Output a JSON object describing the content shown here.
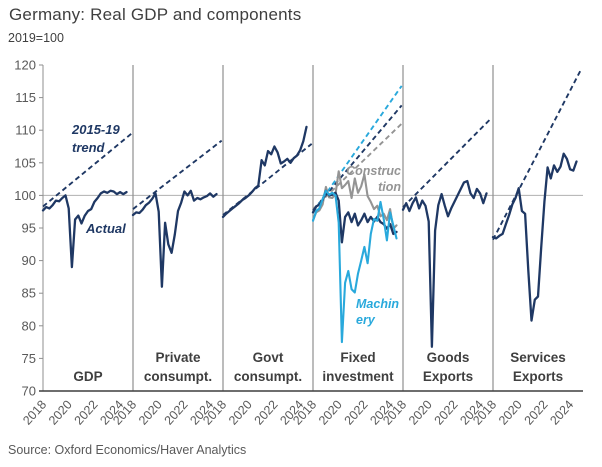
{
  "chart_data": {
    "type": "line",
    "title": "Germany: Real GDP and components",
    "subtitle": "2019=100",
    "source": "Source: Oxford Economics/Haver Analytics",
    "ylim": [
      70,
      120
    ],
    "y_ticks": [
      70,
      75,
      80,
      85,
      90,
      95,
      100,
      105,
      110,
      115,
      120
    ],
    "x_ticks": [
      2018,
      2020,
      2022,
      2024
    ],
    "x_start": 2018,
    "x_step": 0.25,
    "trend_x_end": 2024.9,
    "grid": "single horizontal reference line at 100",
    "legend_position": "inline annotations",
    "colors": {
      "navy": "#1f3864",
      "machinery": "#29a9dc",
      "construction": "#949494",
      "gridline": "#b0b0b0",
      "separator": "#8f8f8f",
      "axis_line": "#8f8f8f",
      "bottom_axis": "#3f3f3f",
      "axis_text": "#595959",
      "caption": "#3f3f3f"
    },
    "annotations": {
      "trend": {
        "lines": [
          "2015-19",
          "trend"
        ]
      },
      "actual": {
        "lines": [
          "Actual"
        ]
      },
      "construction": {
        "lines": [
          "Construc",
          "tion"
        ]
      },
      "machinery": {
        "lines": [
          "Machin",
          "ery"
        ]
      }
    },
    "panels": [
      {
        "caption_lines": [
          "GDP"
        ],
        "series": [
          {
            "name": "Actual",
            "color": "navy",
            "trend_start": 98.3,
            "trend_end": 109.5,
            "values": [
              97.7,
              98.2,
              98.0,
              98.5,
              99.2,
              99.1,
              99.6,
              100.0,
              98.0,
              89.0,
              96.3,
              96.9,
              95.7,
              96.9,
              97.6,
              97.9,
              99.0,
              99.6,
              100.3,
              100.6,
              100.4,
              100.7,
              100.6,
              100.2,
              100.5,
              100.2,
              100.5
            ]
          }
        ]
      },
      {
        "caption_lines": [
          "Private",
          "consumpt."
        ],
        "series": [
          {
            "name": "Actual",
            "color": "navy",
            "trend_start": 97.9,
            "trend_end": 108.4,
            "values": [
              97.0,
              97.4,
              97.3,
              97.8,
              98.5,
              98.9,
              99.5,
              100.3,
              97.5,
              86.0,
              95.8,
              92.5,
              91.2,
              94.0,
              97.6,
              98.9,
              100.6,
              100.0,
              100.7,
              99.2,
              99.6,
              99.4,
              99.7,
              99.9,
              100.3,
              99.8,
              100.2
            ]
          }
        ]
      },
      {
        "caption_lines": [
          "Govt",
          "consumpt."
        ],
        "series": [
          {
            "name": "Actual",
            "color": "navy",
            "trend_start": 97.0,
            "trend_end": 107.9,
            "values": [
              96.7,
              97.2,
              97.6,
              98.0,
              98.4,
              98.8,
              99.3,
              99.6,
              100.0,
              100.5,
              101.1,
              101.5,
              105.4,
              104.6,
              106.8,
              106.3,
              107.5,
              106.6,
              104.9,
              105.2,
              105.6,
              105.0,
              105.7,
              106.1,
              106.9,
              108.3,
              110.5
            ]
          }
        ]
      },
      {
        "caption_lines": [
          "Fixed",
          "investment"
        ],
        "series": [
          {
            "name": "Construction",
            "color": "construction",
            "trend_start": 97.9,
            "trend_end": 111.0,
            "values": [
              96.2,
              97.4,
              97.7,
              98.6,
              101.3,
              99.7,
              99.6,
              100.2,
              103.7,
              101.1,
              101.6,
              102.2,
              99.6,
              102.6,
              100.4,
              101.4,
              103.2,
              99.9,
              99.0,
              97.9,
              98.4,
              96.8,
              97.2,
              96.2,
              97.9,
              94.9,
              95.4
            ]
          },
          {
            "name": "Actual",
            "color": "navy",
            "trend_start": 97.7,
            "trend_end": 113.8,
            "values": [
              97.4,
              98.3,
              98.6,
              99.3,
              100.7,
              100.0,
              100.1,
              100.4,
              99.2,
              92.8,
              96.7,
              97.4,
              95.9,
              97.2,
              95.4,
              96.2,
              97.2,
              95.9,
              96.7,
              96.0,
              96.7,
              95.9,
              95.6,
              94.9,
              95.6,
              94.1,
              94.4
            ]
          },
          {
            "name": "Machinery",
            "color": "machinery",
            "trend_start": 97.4,
            "trend_end": 116.8,
            "values": [
              96.1,
              97.6,
              98.0,
              99.4,
              100.7,
              100.1,
              100.4,
              100.0,
              95.8,
              77.5,
              86.6,
              88.4,
              85.6,
              85.1,
              88.0,
              90.0,
              92.1,
              89.6,
              94.1,
              96.4,
              96.1,
              99.0,
              96.4,
              93.1,
              97.4,
              95.4,
              93.4
            ]
          }
        ]
      },
      {
        "caption_lines": [
          "Goods",
          "Exports"
        ],
        "series": [
          {
            "name": "Actual",
            "color": "navy",
            "trend_start": 98.2,
            "trend_end": 111.9,
            "values": [
              97.8,
              98.8,
              97.6,
              98.8,
              99.7,
              98.0,
              99.2,
              98.4,
              96.0,
              76.8,
              94.6,
              98.5,
              100.2,
              98.4,
              96.8,
              98.0,
              99.0,
              100.0,
              101.0,
              102.0,
              102.2,
              100.3,
              99.6,
              101.0,
              100.3,
              98.8,
              100.3
            ]
          }
        ]
      },
      {
        "caption_lines": [
          "Services",
          "Exports"
        ],
        "series": [
          {
            "name": "Actual",
            "color": "navy",
            "trend_start": 93.2,
            "trend_end": 119.5,
            "values": [
              93.6,
              93.4,
              93.8,
              94.1,
              95.6,
              97.0,
              98.6,
              99.6,
              101.1,
              97.6,
              97.2,
              88.5,
              80.8,
              84.0,
              84.5,
              92.0,
              99.0,
              104.3,
              102.6,
              104.6,
              103.6,
              104.4,
              106.4,
              105.6,
              104.0,
              103.8,
              105.2
            ]
          }
        ]
      }
    ]
  }
}
